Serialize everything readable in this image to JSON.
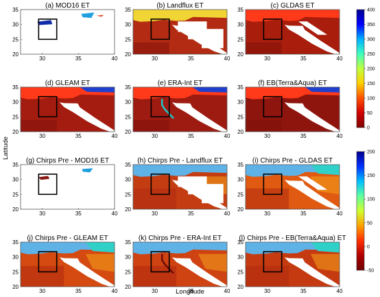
{
  "figure": {
    "xlabel": "Longitude",
    "ylabel": "Latitude",
    "x_ticks": [
      "30",
      "35",
      "40"
    ],
    "y_ticks": [
      "20",
      "25",
      "30",
      "35"
    ],
    "panels": [
      {
        "title": "(a) MOD16 ET",
        "scheme": "et",
        "kind": "mod16"
      },
      {
        "title": "(b) Landflux ET",
        "scheme": "et",
        "kind": "landflux"
      },
      {
        "title": "(c) GLDAS ET",
        "scheme": "et",
        "kind": "gldas"
      },
      {
        "title": "(d) GLEAM ET",
        "scheme": "et",
        "kind": "gleam"
      },
      {
        "title": "(e) ERA-Int ET",
        "scheme": "et",
        "kind": "era"
      },
      {
        "title": "(f) EB(Terra&Aqua) ET",
        "scheme": "et",
        "kind": "eb"
      },
      {
        "title": "(g) Chirps Pre - MOD16 ET",
        "scheme": "diff",
        "kind": "mod16"
      },
      {
        "title": "(h) Chirps Pre - Landflux ET",
        "scheme": "diff",
        "kind": "landflux"
      },
      {
        "title": "(i) Chirps Pre - GLDAS ET",
        "scheme": "diff",
        "kind": "gldas"
      },
      {
        "title": "(j) Chirps Pre - GLEAM ET",
        "scheme": "diff",
        "kind": "gleam"
      },
      {
        "title": "(k) Chirps Pre - ERA-Int ET",
        "scheme": "diff",
        "kind": "era"
      },
      {
        "title": "(l) Chirps Pre - EB(Terra&Aqua) ET",
        "scheme": "diff",
        "kind": "eb"
      }
    ],
    "colorbars": [
      {
        "ticks": [
          "400",
          "350",
          "300",
          "250",
          "200",
          "150",
          "100",
          "50",
          "0"
        ]
      },
      {
        "ticks": [
          "200",
          "150",
          "100",
          "50",
          "0",
          "-50"
        ]
      }
    ]
  }
}
